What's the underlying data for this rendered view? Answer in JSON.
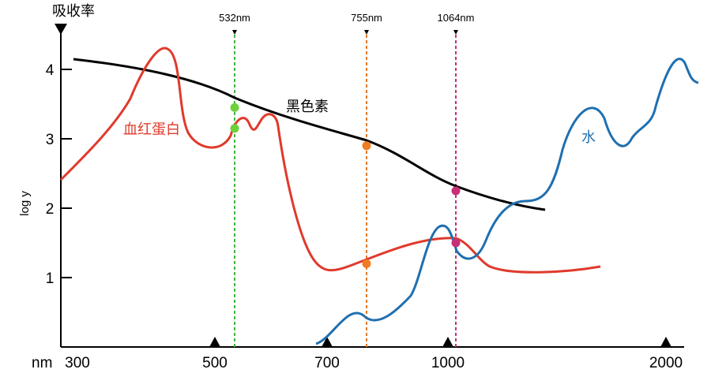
{
  "chart_data": {
    "type": "line",
    "title": "吸收率",
    "ylabel": "log y",
    "xunit": "nm",
    "x_ticks": [
      {
        "value": 300,
        "label": "300"
      },
      {
        "value": 500,
        "label": "500"
      },
      {
        "value": 700,
        "label": "700"
      },
      {
        "value": 1000,
        "label": "1000"
      },
      {
        "value": 2000,
        "label": "2000"
      }
    ],
    "y_ticks": [
      {
        "value": 1,
        "label": "1"
      },
      {
        "value": 2,
        "label": "2"
      },
      {
        "value": 3,
        "label": "3"
      },
      {
        "value": 4,
        "label": "4"
      }
    ],
    "ylim": [
      0,
      4.5
    ],
    "laser_lines": [
      {
        "label": "532nm",
        "color": "#3fb43f"
      },
      {
        "label": "755nm",
        "color": "#e07a2c"
      },
      {
        "label": "1064nm",
        "color": "#c8307a"
      }
    ],
    "series": [
      {
        "name": "黑色素",
        "color": "#000000"
      },
      {
        "name": "血红蛋白",
        "color": "#e03a2c"
      },
      {
        "name": "水",
        "color": "#1f6faf"
      }
    ],
    "markers": [
      {
        "series": "黑色素",
        "laser": "532nm",
        "y": 3.45,
        "color": "#6fd13a"
      },
      {
        "series": "血红蛋白",
        "laser": "532nm",
        "y": 3.15,
        "color": "#6fd13a"
      },
      {
        "series": "黑色素",
        "laser": "755nm",
        "y": 2.9,
        "color": "#ef7d22"
      },
      {
        "series": "血红蛋白",
        "laser": "755nm",
        "y": 1.2,
        "color": "#ef7d22"
      },
      {
        "series": "黑色素",
        "laser": "1064nm",
        "y": 2.25,
        "color": "#c8307a"
      },
      {
        "series": "血红蛋白",
        "laser": "1064nm",
        "y": 1.5,
        "color": "#c8307a"
      }
    ]
  }
}
